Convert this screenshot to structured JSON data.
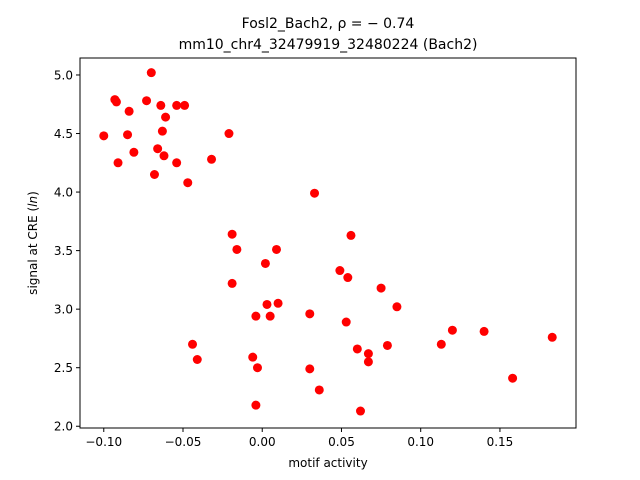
{
  "chart_data": {
    "type": "scatter",
    "title_line1": "Fosl2_Bach2, ρ = − 0.74",
    "title_line2": "mm10_chr4_32479919_32480224 (Bach2)",
    "xlabel": "motif activity",
    "ylabel_prefix": "signal at CRE (",
    "ylabel_italic": "ln",
    "ylabel_suffix": ")",
    "xlim": [
      -0.115,
      0.198
    ],
    "ylim": [
      1.985,
      5.145
    ],
    "xticks": [
      -0.1,
      -0.05,
      0.0,
      0.05,
      0.1,
      0.15
    ],
    "xtick_labels": [
      "−0.10",
      "−0.05",
      "0.00",
      "0.05",
      "0.10",
      "0.15"
    ],
    "yticks": [
      2.0,
      2.5,
      3.0,
      3.5,
      4.0,
      4.5,
      5.0
    ],
    "ytick_labels": [
      "2.0",
      "2.5",
      "3.0",
      "3.5",
      "4.0",
      "4.5",
      "5.0"
    ],
    "grid": false,
    "legend": "none",
    "point_color": "#ff0000",
    "points": [
      {
        "x": -0.1,
        "y": 4.48
      },
      {
        "x": -0.093,
        "y": 4.79
      },
      {
        "x": -0.092,
        "y": 4.77
      },
      {
        "x": -0.091,
        "y": 4.25
      },
      {
        "x": -0.085,
        "y": 4.49
      },
      {
        "x": -0.084,
        "y": 4.69
      },
      {
        "x": -0.081,
        "y": 4.34
      },
      {
        "x": -0.073,
        "y": 4.78
      },
      {
        "x": -0.07,
        "y": 5.02
      },
      {
        "x": -0.068,
        "y": 4.15
      },
      {
        "x": -0.066,
        "y": 4.37
      },
      {
        "x": -0.064,
        "y": 4.74
      },
      {
        "x": -0.063,
        "y": 4.52
      },
      {
        "x": -0.062,
        "y": 4.31
      },
      {
        "x": -0.061,
        "y": 4.64
      },
      {
        "x": -0.054,
        "y": 4.74
      },
      {
        "x": -0.054,
        "y": 4.25
      },
      {
        "x": -0.049,
        "y": 4.74
      },
      {
        "x": -0.047,
        "y": 4.08
      },
      {
        "x": -0.044,
        "y": 2.7
      },
      {
        "x": -0.041,
        "y": 2.57
      },
      {
        "x": -0.032,
        "y": 4.28
      },
      {
        "x": -0.021,
        "y": 4.5
      },
      {
        "x": -0.019,
        "y": 3.64
      },
      {
        "x": -0.019,
        "y": 3.22
      },
      {
        "x": -0.016,
        "y": 3.51
      },
      {
        "x": -0.006,
        "y": 2.59
      },
      {
        "x": -0.004,
        "y": 2.18
      },
      {
        "x": -0.004,
        "y": 2.94
      },
      {
        "x": -0.003,
        "y": 2.5
      },
      {
        "x": 0.002,
        "y": 3.39
      },
      {
        "x": 0.003,
        "y": 3.04
      },
      {
        "x": 0.005,
        "y": 2.94
      },
      {
        "x": 0.009,
        "y": 3.51
      },
      {
        "x": 0.01,
        "y": 3.05
      },
      {
        "x": 0.03,
        "y": 2.96
      },
      {
        "x": 0.03,
        "y": 2.49
      },
      {
        "x": 0.033,
        "y": 3.99
      },
      {
        "x": 0.036,
        "y": 2.31
      },
      {
        "x": 0.049,
        "y": 3.33
      },
      {
        "x": 0.053,
        "y": 2.89
      },
      {
        "x": 0.054,
        "y": 3.27
      },
      {
        "x": 0.056,
        "y": 3.63
      },
      {
        "x": 0.06,
        "y": 2.66
      },
      {
        "x": 0.062,
        "y": 2.13
      },
      {
        "x": 0.067,
        "y": 2.62
      },
      {
        "x": 0.067,
        "y": 2.55
      },
      {
        "x": 0.075,
        "y": 3.18
      },
      {
        "x": 0.079,
        "y": 2.69
      },
      {
        "x": 0.085,
        "y": 3.02
      },
      {
        "x": 0.113,
        "y": 2.7
      },
      {
        "x": 0.12,
        "y": 2.82
      },
      {
        "x": 0.14,
        "y": 2.81
      },
      {
        "x": 0.158,
        "y": 2.41
      },
      {
        "x": 0.183,
        "y": 2.76
      }
    ]
  }
}
